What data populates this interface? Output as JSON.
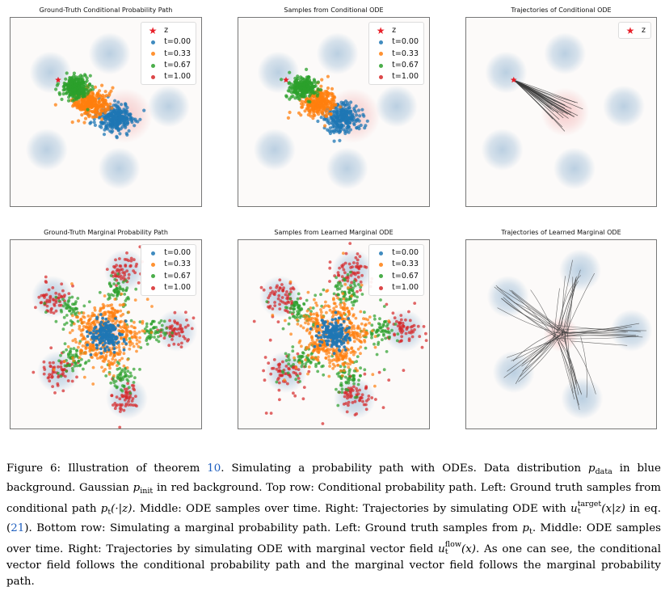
{
  "figure": {
    "panels": [
      {
        "id": "gt-cond",
        "title": "Ground-Truth Conditional Probability Path",
        "kind": "samples",
        "path": "conditional",
        "model": "exact",
        "show_star": true,
        "legend": [
          {
            "marker": "star",
            "label": "z"
          },
          {
            "marker": "dot",
            "label": "t=0.00",
            "color": "#1f77b4"
          },
          {
            "marker": "dot",
            "label": "t=0.33",
            "color": "#ff7f0e"
          },
          {
            "marker": "dot",
            "label": "t=0.67",
            "color": "#2ca02c"
          },
          {
            "marker": "dot",
            "label": "t=1.00",
            "color": "#d62728"
          }
        ]
      },
      {
        "id": "ode-cond",
        "title": "Samples from Conditional ODE",
        "kind": "samples",
        "path": "conditional",
        "model": "ode",
        "show_star": true,
        "legend": [
          {
            "marker": "star",
            "label": "z"
          },
          {
            "marker": "dot",
            "label": "t=0.00",
            "color": "#1f77b4"
          },
          {
            "marker": "dot",
            "label": "t=0.33",
            "color": "#ff7f0e"
          },
          {
            "marker": "dot",
            "label": "t=0.67",
            "color": "#2ca02c"
          },
          {
            "marker": "dot",
            "label": "t=1.00",
            "color": "#d62728"
          }
        ]
      },
      {
        "id": "traj-cond",
        "title": "Trajectories of Conditional ODE",
        "kind": "trajectories",
        "path": "conditional",
        "show_star": true,
        "legend": [
          {
            "marker": "star",
            "label": "z"
          }
        ]
      },
      {
        "id": "gt-marg",
        "title": "Ground-Truth Marginal Probability Path",
        "kind": "samples",
        "path": "marginal",
        "model": "exact",
        "show_star": false,
        "legend": [
          {
            "marker": "dot",
            "label": "t=0.00",
            "color": "#1f77b4"
          },
          {
            "marker": "dot",
            "label": "t=0.33",
            "color": "#ff7f0e"
          },
          {
            "marker": "dot",
            "label": "t=0.67",
            "color": "#2ca02c"
          },
          {
            "marker": "dot",
            "label": "t=1.00",
            "color": "#d62728"
          }
        ]
      },
      {
        "id": "ode-marg",
        "title": "Samples from Learned Marginal ODE",
        "kind": "samples",
        "path": "marginal",
        "model": "ode",
        "show_star": false,
        "legend": [
          {
            "marker": "dot",
            "label": "t=0.00",
            "color": "#1f77b4"
          },
          {
            "marker": "dot",
            "label": "t=0.33",
            "color": "#ff7f0e"
          },
          {
            "marker": "dot",
            "label": "t=0.67",
            "color": "#2ca02c"
          },
          {
            "marker": "dot",
            "label": "t=1.00",
            "color": "#d62728"
          }
        ]
      },
      {
        "id": "traj-marg",
        "title": "Trajectories of Learned Marginal ODE",
        "kind": "trajectories",
        "path": "marginal",
        "show_star": false,
        "legend": []
      }
    ],
    "colors": {
      "t0": "#1f77b4",
      "t033": "#ff7f0e",
      "t067": "#2ca02c",
      "t1": "#d62728",
      "star": "#e8202a",
      "data_bg": "#b7cde0",
      "init_bg": "#f5c4c4",
      "trajectory": "#3a3a3a"
    }
  },
  "caption": {
    "figure_label": "Figure 6:",
    "s1_pre": "Illustration of theorem",
    "s1_ref": "10",
    "s1_post": ". Simulating a probability path with ODEs. Data distribution",
    "p_data_var": "p",
    "p_data_sub": "data",
    "s2": "in blue background. Gaussian",
    "p_init_var": "p",
    "p_init_sub": "init",
    "s3": "in red background. Top row: Conditional probability path. Left: Ground truth samples from conditional path",
    "cond_path": "p",
    "cond_path_sub": "t",
    "cond_path_args": "(·|z)",
    "s4": ". Middle: ODE samples over time. Right: Trajectories by simulating ODE with",
    "u_target_var": "u",
    "u_target_sub": "t",
    "u_target_sup": "target",
    "u_target_args": "(x|z)",
    "s5_pre": "in eq. (",
    "s5_ref": "21",
    "s5_post": "). Bottom row: Simulating a marginal probability path. Left: Ground truth samples from",
    "p_t_var": "p",
    "p_t_sub": "t",
    "s6": ". Middle: ODE samples over time. Right: Trajectories by simulating ODE with marginal vector field",
    "u_flow_var": "u",
    "u_flow_sub": "t",
    "u_flow_sup": "flow",
    "u_flow_args": "(x)",
    "s7": ". As one can see, the conditional vector field follows the conditional probability path and the marginal vector field follows the marginal probability path."
  }
}
